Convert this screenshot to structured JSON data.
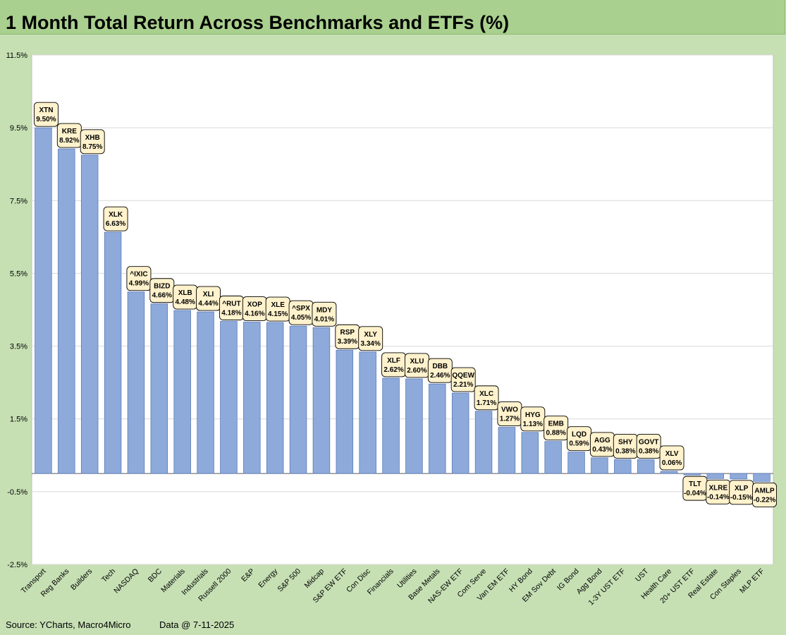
{
  "title": "1 Month Total Return Across Benchmarks and ETFs (%)",
  "footer": {
    "source": "Source: YCharts, Macro4Micro",
    "date_note": "Data @ 7-11-2025"
  },
  "colors": {
    "page_bg": "#c6e0b4",
    "title_bg": "#a9d08e",
    "bar_fill": "#8eaadb",
    "bar_stroke": "#5a7bb8",
    "bubble_fill": "#fff2cc",
    "bubble_stroke": "#000000"
  },
  "chart_data": {
    "type": "bar",
    "title": "1 Month Total Return Across Benchmarks and ETFs (%)",
    "xlabel": "",
    "ylabel": "",
    "ylim": [
      -2.5,
      11.5
    ],
    "yticks": [
      -2.5,
      -0.5,
      1.5,
      3.5,
      5.5,
      7.5,
      9.5,
      11.5
    ],
    "ytick_labels": [
      "-2.5%",
      "-0.5%",
      "1.5%",
      "3.5%",
      "5.5%",
      "7.5%",
      "9.5%",
      "11.5%"
    ],
    "grid": true,
    "categories": [
      "Transport",
      "Reg Banks",
      "Builders",
      "Tech",
      "NASDAQ",
      "BDC",
      "Materials",
      "Industrials",
      "Russell 2000",
      "E&P",
      "Energy",
      "S&P 500",
      "Midcap",
      "S&P EW ETF",
      "Con Disc",
      "Financials",
      "Utilities",
      "Base Metals",
      "NAS-EW ETF",
      "Com Serve",
      "Van EM ETF",
      "HY Bond",
      "EM Sov Debt",
      "IG Bond",
      "Agg Bond",
      "1-3Y UST ETF",
      "UST",
      "Health Care",
      "20+ UST ETF",
      "Real Estate",
      "Con Staples",
      "MLP ETF"
    ],
    "tickers": [
      "XTN",
      "KRE",
      "XHB",
      "XLK",
      "^IXIC",
      "BIZD",
      "XLB",
      "XLI",
      "^RUT",
      "XOP",
      "XLE",
      "^SPX",
      "MDY",
      "RSP",
      "XLY",
      "XLF",
      "XLU",
      "DBB",
      "QQEW",
      "XLC",
      "VWO",
      "HYG",
      "EMB",
      "LQD",
      "AGG",
      "SHY",
      "GOVT",
      "XLV",
      "TLT",
      "XLRE",
      "XLP",
      "AMLP"
    ],
    "values": [
      9.5,
      8.92,
      8.75,
      6.63,
      4.99,
      4.66,
      4.48,
      4.44,
      4.18,
      4.16,
      4.15,
      4.05,
      4.01,
      3.39,
      3.34,
      2.62,
      2.6,
      2.46,
      2.21,
      1.71,
      1.27,
      1.13,
      0.88,
      0.59,
      0.43,
      0.38,
      0.38,
      0.06,
      -0.04,
      -0.14,
      -0.15,
      -0.22
    ],
    "value_labels": [
      "9.50%",
      "8.92%",
      "8.75%",
      "6.63%",
      "4.99%",
      "4.66%",
      "4.48%",
      "4.44%",
      "4.18%",
      "4.16%",
      "4.15%",
      "4.05%",
      "4.01%",
      "3.39%",
      "3.34%",
      "2.62%",
      "2.60%",
      "2.46%",
      "2.21%",
      "1.71%",
      "1.27%",
      "1.13%",
      "0.88%",
      "0.59%",
      "0.43%",
      "0.38%",
      "0.38%",
      "0.06%",
      "-0.04%",
      "-0.14%",
      "-0.15%",
      "-0.22%"
    ]
  }
}
